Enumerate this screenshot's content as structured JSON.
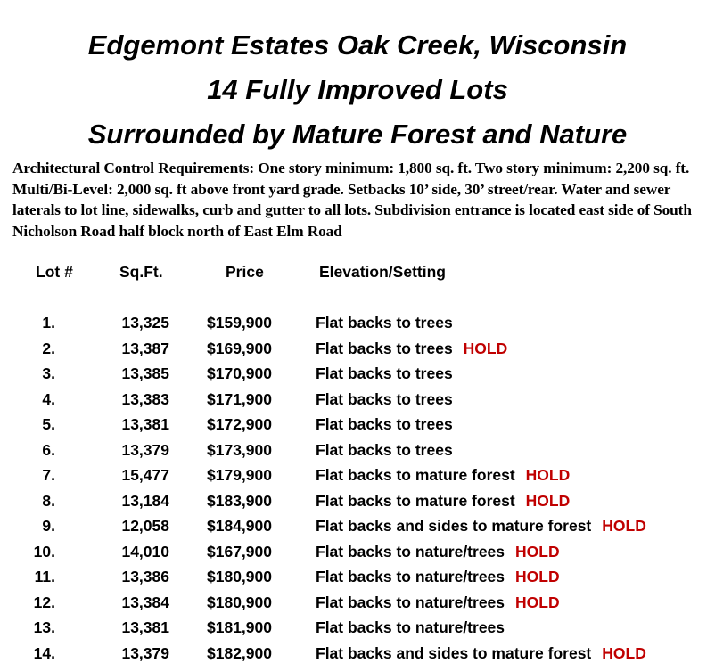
{
  "titles": [
    "Edgemont Estates Oak Creek, Wisconsin",
    "14 Fully Improved Lots",
    "Surrounded by Mature Forest and Nature"
  ],
  "requirements": "Architectural Control Requirements: One story minimum: 1,800 sq. ft. Two story minimum: 2,200 sq. ft.   Multi/Bi-Level: 2,000 sq. ft above front yard grade. Setbacks 10’ side, 30’ street/rear. Water and sewer laterals to lot line, sidewalks, curb and gutter to all lots. Subdivision entrance is located east side of South Nicholson Road half block north of East Elm Road",
  "columns": {
    "lot": "Lot #",
    "sqft": "Sq.Ft.",
    "price": "Price",
    "elevation": "Elevation/Setting"
  },
  "hold_color": "#c00000",
  "lots": [
    {
      "lot": "1.",
      "sqft": "13,325",
      "price": "$159,900",
      "elevation": "Flat backs to trees",
      "status": ""
    },
    {
      "lot": "2.",
      "sqft": "13,387",
      "price": "$169,900",
      "elevation": "Flat backs to trees",
      "status": "HOLD"
    },
    {
      "lot": "3.",
      "sqft": "13,385",
      "price": "$170,900",
      "elevation": "Flat backs to trees",
      "status": ""
    },
    {
      "lot": "4.",
      "sqft": "13,383",
      "price": "$171,900",
      "elevation": "Flat backs to trees",
      "status": ""
    },
    {
      "lot": "5.",
      "sqft": "13,381",
      "price": "$172,900",
      "elevation": "Flat backs to trees",
      "status": ""
    },
    {
      "lot": "6.",
      "sqft": "13,379",
      "price": "$173,900",
      "elevation": "Flat backs to trees",
      "status": ""
    },
    {
      "lot": "7.",
      "sqft": "15,477",
      "price": "$179,900",
      "elevation": "Flat backs to mature forest",
      "status": "HOLD"
    },
    {
      "lot": "8.",
      "sqft": "13,184",
      "price": "$183,900",
      "elevation": "Flat backs to mature forest",
      "status": "HOLD"
    },
    {
      "lot": "9.",
      "sqft": "12,058",
      "price": "$184,900",
      "elevation": "Flat backs and sides to mature forest",
      "status": "HOLD"
    },
    {
      "lot": "10.",
      "sqft": "14,010",
      "price": "$167,900",
      "elevation": "Flat backs to nature/trees",
      "status": "HOLD"
    },
    {
      "lot": "11.",
      "sqft": "13,386",
      "price": "$180,900",
      "elevation": "Flat backs to nature/trees",
      "status": "HOLD"
    },
    {
      "lot": "12.",
      "sqft": "13,384",
      "price": "$180,900",
      "elevation": "Flat backs to nature/trees",
      "status": "HOLD"
    },
    {
      "lot": "13.",
      "sqft": "13,381",
      "price": "$181,900",
      "elevation": "Flat backs to nature/trees",
      "status": ""
    },
    {
      "lot": "14.",
      "sqft": "13,379",
      "price": "$182,900",
      "elevation": "Flat backs and sides to mature forest",
      "status": "HOLD"
    }
  ]
}
